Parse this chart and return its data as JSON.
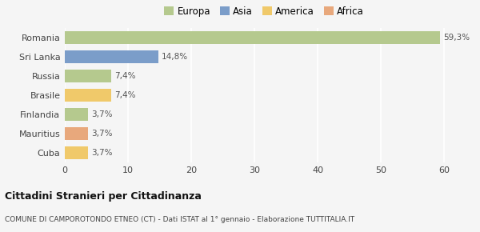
{
  "categories": [
    "Romania",
    "Sri Lanka",
    "Russia",
    "Brasile",
    "Finlandia",
    "Mauritius",
    "Cuba"
  ],
  "values": [
    59.3,
    14.8,
    7.4,
    7.4,
    3.7,
    3.7,
    3.7
  ],
  "labels": [
    "59,3%",
    "14,8%",
    "7,4%",
    "7,4%",
    "3,7%",
    "3,7%",
    "3,7%"
  ],
  "colors": [
    "#b5c98e",
    "#7b9dc9",
    "#b5c98e",
    "#f0c96a",
    "#b5c98e",
    "#e8a87c",
    "#f0c96a"
  ],
  "legend": [
    {
      "label": "Europa",
      "color": "#b5c98e"
    },
    {
      "label": "Asia",
      "color": "#7b9dc9"
    },
    {
      "label": "America",
      "color": "#f0c96a"
    },
    {
      "label": "Africa",
      "color": "#e8a87c"
    }
  ],
  "xlim": [
    0,
    63
  ],
  "xticks": [
    0,
    10,
    20,
    30,
    40,
    50,
    60
  ],
  "title": "Cittadini Stranieri per Cittadinanza",
  "subtitle": "COMUNE DI CAMPOROTONDO ETNEO (CT) - Dati ISTAT al 1° gennaio - Elaborazione TUTTITALIA.IT",
  "background_color": "#f5f5f5",
  "grid_color": "#ffffff",
  "bar_height": 0.65
}
